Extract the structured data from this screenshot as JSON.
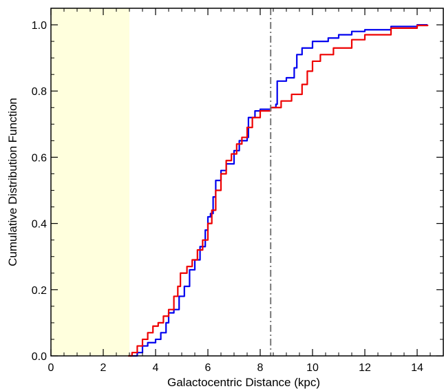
{
  "chart_data": {
    "type": "line",
    "title": "",
    "xlabel": "Galactocentric Distance (kpc)",
    "ylabel": "Cumulative Distribution Function",
    "xlim": [
      0,
      15
    ],
    "ylim": [
      0,
      1.05
    ],
    "x_ticks": [
      0,
      2,
      4,
      6,
      8,
      10,
      12,
      14
    ],
    "x_tick_labels": [
      "0",
      "2",
      "4",
      "6",
      "8",
      "10",
      "12",
      "14"
    ],
    "y_ticks": [
      0,
      0.2,
      0.4,
      0.6,
      0.8,
      1.0
    ],
    "y_tick_labels": [
      "0.0",
      "0.2",
      "0.4",
      "0.6",
      "0.8",
      "1.0"
    ],
    "grid": false,
    "shaded_region": {
      "x": [
        0,
        3
      ],
      "color": "#ffffdd"
    },
    "vertical_line": {
      "x": 8.4,
      "style": "dash-dot",
      "color": "#777777"
    },
    "series": [
      {
        "color": "#0000ee",
        "points": [
          [
            3.0,
            0.0
          ],
          [
            3.3,
            0.01
          ],
          [
            3.5,
            0.03
          ],
          [
            3.7,
            0.04
          ],
          [
            4.0,
            0.05
          ],
          [
            4.2,
            0.07
          ],
          [
            4.4,
            0.1
          ],
          [
            4.5,
            0.13
          ],
          [
            4.7,
            0.14
          ],
          [
            4.9,
            0.18
          ],
          [
            5.1,
            0.21
          ],
          [
            5.3,
            0.26
          ],
          [
            5.5,
            0.29
          ],
          [
            5.7,
            0.33
          ],
          [
            5.9,
            0.38
          ],
          [
            6.0,
            0.42
          ],
          [
            6.1,
            0.43
          ],
          [
            6.2,
            0.48
          ],
          [
            6.3,
            0.53
          ],
          [
            6.5,
            0.56
          ],
          [
            6.7,
            0.58
          ],
          [
            7.0,
            0.62
          ],
          [
            7.2,
            0.65
          ],
          [
            7.5,
            0.66
          ],
          [
            7.55,
            0.72
          ],
          [
            7.8,
            0.74
          ],
          [
            8.0,
            0.745
          ],
          [
            8.4,
            0.75
          ],
          [
            8.6,
            0.76
          ],
          [
            8.65,
            0.83
          ],
          [
            9.0,
            0.84
          ],
          [
            9.3,
            0.87
          ],
          [
            9.4,
            0.91
          ],
          [
            9.6,
            0.93
          ],
          [
            10.0,
            0.95
          ],
          [
            10.6,
            0.96
          ],
          [
            11.0,
            0.97
          ],
          [
            11.5,
            0.98
          ],
          [
            12.0,
            0.985
          ],
          [
            13.0,
            0.995
          ],
          [
            14.0,
            1.0
          ],
          [
            14.4,
            1.0
          ]
        ]
      },
      {
        "color": "#ee0000",
        "points": [
          [
            2.95,
            0.0
          ],
          [
            3.1,
            0.01
          ],
          [
            3.3,
            0.03
          ],
          [
            3.5,
            0.05
          ],
          [
            3.7,
            0.07
          ],
          [
            3.9,
            0.09
          ],
          [
            4.1,
            0.1
          ],
          [
            4.3,
            0.12
          ],
          [
            4.5,
            0.14
          ],
          [
            4.7,
            0.18
          ],
          [
            4.85,
            0.21
          ],
          [
            4.95,
            0.25
          ],
          [
            5.2,
            0.27
          ],
          [
            5.4,
            0.29
          ],
          [
            5.6,
            0.32
          ],
          [
            5.8,
            0.35
          ],
          [
            6.0,
            0.4
          ],
          [
            6.15,
            0.44
          ],
          [
            6.3,
            0.5
          ],
          [
            6.5,
            0.55
          ],
          [
            6.7,
            0.59
          ],
          [
            6.9,
            0.61
          ],
          [
            7.1,
            0.64
          ],
          [
            7.3,
            0.66
          ],
          [
            7.5,
            0.69
          ],
          [
            7.7,
            0.72
          ],
          [
            8.0,
            0.74
          ],
          [
            8.4,
            0.75
          ],
          [
            8.8,
            0.77
          ],
          [
            9.2,
            0.79
          ],
          [
            9.6,
            0.82
          ],
          [
            9.8,
            0.86
          ],
          [
            10.0,
            0.89
          ],
          [
            10.3,
            0.91
          ],
          [
            10.8,
            0.93
          ],
          [
            11.5,
            0.955
          ],
          [
            12.0,
            0.97
          ],
          [
            13.0,
            0.99
          ],
          [
            14.0,
            0.998
          ],
          [
            14.4,
            1.0
          ]
        ]
      }
    ]
  }
}
